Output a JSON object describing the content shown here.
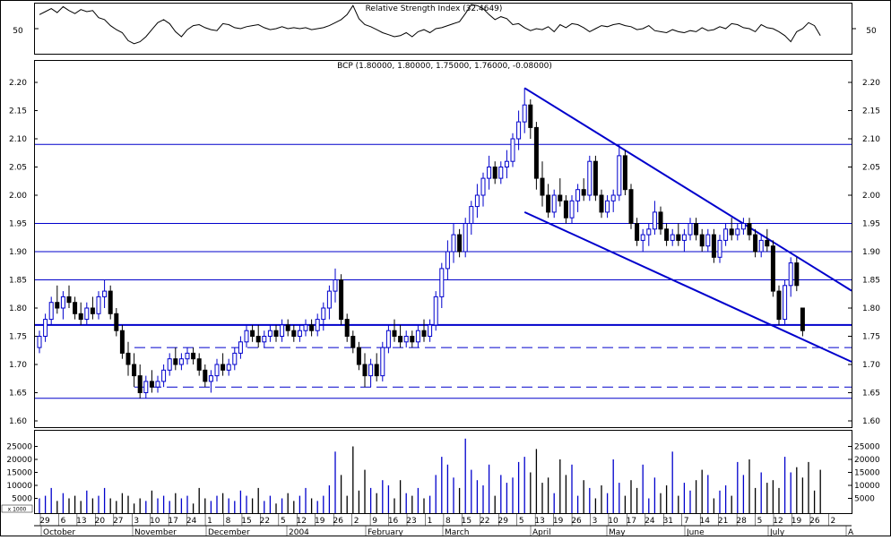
{
  "chart_data": [
    {
      "type": "line",
      "title": "Relative Strength Index (32.4649)",
      "ylim": [
        0,
        100
      ],
      "y_ticks": [
        50
      ],
      "series": [
        {
          "values": [
            78,
            84,
            90,
            82,
            94,
            86,
            80,
            88,
            84,
            86,
            72,
            68,
            56,
            48,
            42,
            26,
            20,
            24,
            34,
            48,
            62,
            68,
            60,
            44,
            34,
            48,
            56,
            58,
            52,
            48,
            46,
            60,
            58,
            52,
            50,
            54,
            56,
            58,
            52,
            48,
            50,
            54,
            50,
            52,
            50,
            52,
            48,
            50,
            52,
            56,
            62,
            68,
            78,
            96,
            70,
            58,
            54,
            48,
            42,
            38,
            34,
            36,
            42,
            34,
            44,
            48,
            42,
            50,
            52,
            56,
            60,
            64,
            80,
            98,
            96,
            90,
            78,
            68,
            74,
            70,
            58,
            60,
            52,
            46,
            50,
            48,
            54,
            44,
            58,
            52,
            60,
            58,
            52,
            44,
            50,
            56,
            54,
            58,
            60,
            56,
            54,
            48,
            50,
            56,
            46,
            44,
            42,
            48,
            44,
            42,
            46,
            44,
            52,
            46,
            48,
            54,
            50,
            60,
            58,
            52,
            50,
            44,
            58,
            52,
            50,
            44,
            36,
            24,
            44,
            50,
            62,
            56,
            36
          ]
        }
      ]
    },
    {
      "type": "bar",
      "title": "BCP (1.80000, 1.80000, 1.75000, 1.76000, -0.08000)",
      "ylim": [
        1.57,
        2.22
      ],
      "y_ticks": [
        "1.60",
        "1.65",
        "1.70",
        "1.75",
        "1.80",
        "1.85",
        "1.90",
        "1.95",
        "2.00",
        "2.05",
        "2.10",
        "2.15",
        "2.20"
      ],
      "candles": [
        [
          1.73,
          1.76,
          1.72,
          1.75
        ],
        [
          1.75,
          1.79,
          1.74,
          1.78
        ],
        [
          1.78,
          1.82,
          1.77,
          1.81
        ],
        [
          1.81,
          1.84,
          1.79,
          1.8
        ],
        [
          1.8,
          1.83,
          1.78,
          1.82
        ],
        [
          1.82,
          1.84,
          1.8,
          1.81
        ],
        [
          1.81,
          1.82,
          1.78,
          1.79
        ],
        [
          1.79,
          1.81,
          1.77,
          1.78
        ],
        [
          1.78,
          1.81,
          1.77,
          1.8
        ],
        [
          1.8,
          1.82,
          1.78,
          1.79
        ],
        [
          1.79,
          1.83,
          1.78,
          1.82
        ],
        [
          1.82,
          1.85,
          1.8,
          1.83
        ],
        [
          1.83,
          1.84,
          1.78,
          1.79
        ],
        [
          1.79,
          1.8,
          1.75,
          1.76
        ],
        [
          1.76,
          1.77,
          1.71,
          1.72
        ],
        [
          1.72,
          1.74,
          1.68,
          1.7
        ],
        [
          1.7,
          1.72,
          1.66,
          1.68
        ],
        [
          1.68,
          1.7,
          1.64,
          1.65
        ],
        [
          1.65,
          1.68,
          1.64,
          1.67
        ],
        [
          1.67,
          1.69,
          1.65,
          1.66
        ],
        [
          1.66,
          1.68,
          1.65,
          1.67
        ],
        [
          1.67,
          1.7,
          1.66,
          1.69
        ],
        [
          1.69,
          1.72,
          1.68,
          1.71
        ],
        [
          1.71,
          1.73,
          1.69,
          1.7
        ],
        [
          1.7,
          1.72,
          1.69,
          1.71
        ],
        [
          1.71,
          1.73,
          1.7,
          1.72
        ],
        [
          1.72,
          1.73,
          1.7,
          1.71
        ],
        [
          1.71,
          1.72,
          1.68,
          1.69
        ],
        [
          1.69,
          1.7,
          1.66,
          1.67
        ],
        [
          1.67,
          1.69,
          1.65,
          1.68
        ],
        [
          1.68,
          1.71,
          1.67,
          1.7
        ],
        [
          1.7,
          1.72,
          1.68,
          1.69
        ],
        [
          1.69,
          1.71,
          1.68,
          1.7
        ],
        [
          1.7,
          1.73,
          1.69,
          1.72
        ],
        [
          1.72,
          1.75,
          1.71,
          1.74
        ],
        [
          1.74,
          1.77,
          1.73,
          1.76
        ],
        [
          1.76,
          1.77,
          1.74,
          1.75
        ],
        [
          1.75,
          1.77,
          1.73,
          1.74
        ],
        [
          1.74,
          1.76,
          1.73,
          1.75
        ],
        [
          1.75,
          1.77,
          1.74,
          1.76
        ],
        [
          1.76,
          1.77,
          1.74,
          1.75
        ],
        [
          1.75,
          1.78,
          1.74,
          1.77
        ],
        [
          1.77,
          1.78,
          1.75,
          1.76
        ],
        [
          1.76,
          1.77,
          1.74,
          1.75
        ],
        [
          1.75,
          1.77,
          1.74,
          1.76
        ],
        [
          1.76,
          1.78,
          1.75,
          1.77
        ],
        [
          1.77,
          1.78,
          1.75,
          1.76
        ],
        [
          1.76,
          1.79,
          1.75,
          1.78
        ],
        [
          1.78,
          1.81,
          1.76,
          1.8
        ],
        [
          1.8,
          1.84,
          1.78,
          1.83
        ],
        [
          1.83,
          1.87,
          1.81,
          1.85
        ],
        [
          1.85,
          1.86,
          1.77,
          1.78
        ],
        [
          1.78,
          1.79,
          1.74,
          1.75
        ],
        [
          1.75,
          1.76,
          1.72,
          1.73
        ],
        [
          1.73,
          1.74,
          1.69,
          1.7
        ],
        [
          1.7,
          1.72,
          1.66,
          1.68
        ],
        [
          1.68,
          1.71,
          1.66,
          1.7
        ],
        [
          1.7,
          1.72,
          1.67,
          1.68
        ],
        [
          1.68,
          1.74,
          1.67,
          1.73
        ],
        [
          1.73,
          1.77,
          1.72,
          1.76
        ],
        [
          1.76,
          1.78,
          1.74,
          1.75
        ],
        [
          1.75,
          1.77,
          1.73,
          1.74
        ],
        [
          1.74,
          1.76,
          1.73,
          1.75
        ],
        [
          1.75,
          1.76,
          1.73,
          1.74
        ],
        [
          1.74,
          1.77,
          1.73,
          1.76
        ],
        [
          1.76,
          1.78,
          1.74,
          1.75
        ],
        [
          1.75,
          1.78,
          1.74,
          1.77
        ],
        [
          1.77,
          1.83,
          1.76,
          1.82
        ],
        [
          1.82,
          1.88,
          1.8,
          1.87
        ],
        [
          1.87,
          1.92,
          1.85,
          1.9
        ],
        [
          1.9,
          1.95,
          1.88,
          1.93
        ],
        [
          1.93,
          1.94,
          1.89,
          1.9
        ],
        [
          1.9,
          1.96,
          1.89,
          1.95
        ],
        [
          1.95,
          1.99,
          1.93,
          1.98
        ],
        [
          1.98,
          2.02,
          1.96,
          2.0
        ],
        [
          2.0,
          2.04,
          1.98,
          2.03
        ],
        [
          2.03,
          2.07,
          2.01,
          2.05
        ],
        [
          2.05,
          2.06,
          2.02,
          2.03
        ],
        [
          2.03,
          2.06,
          2.02,
          2.05
        ],
        [
          2.05,
          2.08,
          2.03,
          2.06
        ],
        [
          2.06,
          2.11,
          2.05,
          2.1
        ],
        [
          2.1,
          2.15,
          2.08,
          2.13
        ],
        [
          2.13,
          2.19,
          2.11,
          2.16
        ],
        [
          2.16,
          2.17,
          2.1,
          2.12
        ],
        [
          2.12,
          2.13,
          2.01,
          2.03
        ],
        [
          2.03,
          2.06,
          1.98,
          2.0
        ],
        [
          2.0,
          2.02,
          1.96,
          1.97
        ],
        [
          1.97,
          2.01,
          1.96,
          2.0
        ],
        [
          2.0,
          2.03,
          1.98,
          1.99
        ],
        [
          1.99,
          2.0,
          1.95,
          1.96
        ],
        [
          1.96,
          2.0,
          1.95,
          1.99
        ],
        [
          1.99,
          2.02,
          1.97,
          2.01
        ],
        [
          2.01,
          2.03,
          1.99,
          2.0
        ],
        [
          2.0,
          2.07,
          1.99,
          2.06
        ],
        [
          2.06,
          2.07,
          1.99,
          2.0
        ],
        [
          2.0,
          2.01,
          1.96,
          1.97
        ],
        [
          1.97,
          2.0,
          1.96,
          1.99
        ],
        [
          1.99,
          2.01,
          1.97,
          2.0
        ],
        [
          2.0,
          2.09,
          1.99,
          2.07
        ],
        [
          2.07,
          2.08,
          2.0,
          2.01
        ],
        [
          2.01,
          2.02,
          1.94,
          1.95
        ],
        [
          1.95,
          1.96,
          1.91,
          1.92
        ],
        [
          1.92,
          1.94,
          1.9,
          1.93
        ],
        [
          1.93,
          1.95,
          1.91,
          1.94
        ],
        [
          1.94,
          1.99,
          1.93,
          1.97
        ],
        [
          1.97,
          1.98,
          1.93,
          1.94
        ],
        [
          1.94,
          1.95,
          1.91,
          1.92
        ],
        [
          1.92,
          1.94,
          1.91,
          1.93
        ],
        [
          1.93,
          1.95,
          1.91,
          1.92
        ],
        [
          1.92,
          1.94,
          1.9,
          1.93
        ],
        [
          1.93,
          1.96,
          1.92,
          1.95
        ],
        [
          1.95,
          1.96,
          1.92,
          1.93
        ],
        [
          1.93,
          1.94,
          1.9,
          1.91
        ],
        [
          1.91,
          1.94,
          1.9,
          1.93
        ],
        [
          1.93,
          1.94,
          1.88,
          1.89
        ],
        [
          1.89,
          1.93,
          1.88,
          1.92
        ],
        [
          1.92,
          1.95,
          1.91,
          1.94
        ],
        [
          1.94,
          1.96,
          1.92,
          1.93
        ],
        [
          1.93,
          1.95,
          1.92,
          1.94
        ],
        [
          1.94,
          1.96,
          1.93,
          1.95
        ],
        [
          1.95,
          1.96,
          1.92,
          1.93
        ],
        [
          1.93,
          1.94,
          1.89,
          1.9
        ],
        [
          1.9,
          1.93,
          1.89,
          1.92
        ],
        [
          1.92,
          1.94,
          1.9,
          1.91
        ],
        [
          1.91,
          1.92,
          1.82,
          1.83
        ],
        [
          1.83,
          1.84,
          1.77,
          1.78
        ],
        [
          1.78,
          1.85,
          1.77,
          1.84
        ],
        [
          1.84,
          1.89,
          1.82,
          1.88
        ],
        [
          1.88,
          1.89,
          1.83,
          1.84
        ],
        [
          1.8,
          1.8,
          1.75,
          1.76
        ]
      ],
      "horizontal_lines": [
        2.09,
        1.95,
        1.9,
        1.85,
        1.77,
        1.64
      ],
      "dashed_lines": [
        1.73,
        1.66
      ],
      "trendlines": [
        {
          "from": [
            82,
            2.19
          ],
          "to": [
            132,
            1.865
          ]
        },
        {
          "from": [
            82,
            1.97
          ],
          "to": [
            132,
            1.73
          ]
        }
      ]
    },
    {
      "type": "bar",
      "title": "",
      "ylim": [
        0,
        28000
      ],
      "y_ticks": [
        "5000",
        "10000",
        "15000",
        "20000",
        "25000"
      ],
      "unit_label": "x 1000",
      "values": [
        5000,
        6000,
        9000,
        4000,
        7000,
        5000,
        6000,
        4000,
        8000,
        5000,
        6000,
        9000,
        5000,
        4000,
        7000,
        6000,
        3000,
        5000,
        4000,
        8000,
        5000,
        6000,
        4000,
        7000,
        5000,
        6000,
        3000,
        9000,
        5000,
        4000,
        6000,
        7000,
        5000,
        4000,
        8000,
        6000,
        5000,
        9000,
        4000,
        6000,
        3000,
        5000,
        7000,
        4000,
        6000,
        9000,
        5000,
        4000,
        6000,
        10000,
        23000,
        14000,
        6000,
        25000,
        8000,
        16000,
        9000,
        7000,
        12000,
        10000,
        5000,
        12000,
        7000,
        6000,
        9000,
        5000,
        6000,
        14000,
        21000,
        18000,
        13000,
        9000,
        28000,
        16000,
        12000,
        10000,
        18000,
        6000,
        14000,
        11000,
        13000,
        19000,
        21000,
        15000,
        24000,
        11000,
        13000,
        7000,
        20000,
        14000,
        18000,
        6000,
        12000,
        9000,
        5000,
        10000,
        7000,
        20000,
        11000,
        6000,
        12000,
        9000,
        18000,
        5000,
        13000,
        7000,
        10000,
        23000,
        6000,
        11000,
        8000,
        12000,
        16000,
        14000,
        5000,
        8000,
        10000,
        6000,
        19000,
        14000,
        20000,
        9000,
        15000,
        11000,
        12000,
        9000,
        21000,
        15000,
        17000,
        13000,
        19000,
        8000,
        16000
      ]
    }
  ],
  "x_axis": {
    "day_labels": [
      "29",
      "6",
      "13",
      "20",
      "27",
      "3",
      "10",
      "17",
      "24",
      "1",
      "8",
      "15",
      "22",
      "5",
      "12",
      "19",
      "26",
      "2",
      "9",
      "16",
      "23",
      "1",
      "8",
      "15",
      "22",
      "29",
      "5",
      "13",
      "19",
      "26",
      "3",
      "10",
      "17",
      "24",
      "31",
      "7",
      "14",
      "21",
      "28",
      "5",
      "12",
      "19",
      "26",
      "2"
    ],
    "month_labels": [
      "October",
      "November",
      "December",
      "2004",
      "February",
      "March",
      "April",
      "May",
      "June",
      "July",
      "A"
    ]
  },
  "colors": {
    "up": "#0000cc",
    "down": "#000000",
    "lines": "#0000cc",
    "frame": "#000000",
    "background": "#ffffff"
  }
}
